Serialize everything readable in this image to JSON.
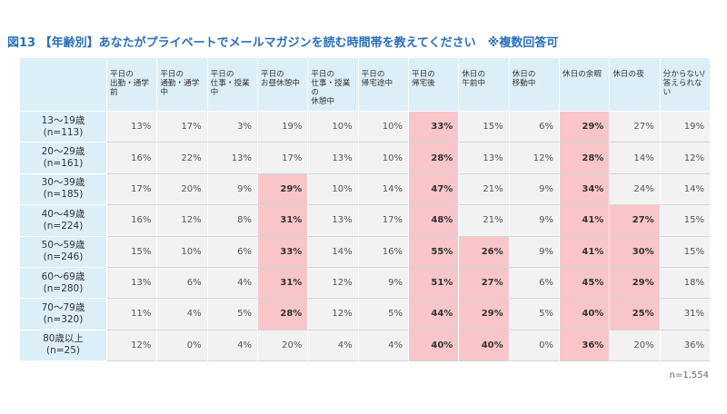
{
  "title": "図13 【年齢別】あなたがプライベートでメールマガジンを読む時間帯を教えてください　※複数回答可",
  "note": "n=1,554",
  "chart_data": {
    "type": "table",
    "columns": [
      "平日の\n出勤・通学前",
      "平日の\n通勤・通学中",
      "平日の\n仕事・授業中",
      "平日の\nお昼休憩中",
      "平日の\n仕事・授業の\n休憩中",
      "平日の\n帰宅途中",
      "平日の\n帰宅後",
      "休日の\n午前中",
      "休日の\n移動中",
      "休日の余暇",
      "休日の夜",
      "分からない/\n答えられな\nい"
    ],
    "rows": [
      {
        "label": "13～19歳\n(n=113)",
        "values": [
          "13%",
          "17%",
          "3%",
          "19%",
          "10%",
          "10%",
          "33%",
          "15%",
          "6%",
          "29%",
          "27%",
          "19%"
        ],
        "highlight": [
          6,
          9
        ]
      },
      {
        "label": "20～29歳\n(n=161)",
        "values": [
          "16%",
          "22%",
          "13%",
          "17%",
          "13%",
          "10%",
          "28%",
          "13%",
          "12%",
          "28%",
          "14%",
          "12%"
        ],
        "highlight": [
          6,
          9
        ]
      },
      {
        "label": "30～39歳\n(n=185)",
        "values": [
          "17%",
          "20%",
          "9%",
          "29%",
          "10%",
          "14%",
          "47%",
          "21%",
          "9%",
          "34%",
          "24%",
          "14%"
        ],
        "highlight": [
          3,
          6,
          9
        ]
      },
      {
        "label": "40～49歳\n(n=224)",
        "values": [
          "16%",
          "12%",
          "8%",
          "31%",
          "13%",
          "17%",
          "48%",
          "21%",
          "9%",
          "41%",
          "27%",
          "15%"
        ],
        "highlight": [
          3,
          6,
          9,
          10
        ]
      },
      {
        "label": "50～59歳\n(n=246)",
        "values": [
          "15%",
          "10%",
          "6%",
          "33%",
          "14%",
          "16%",
          "55%",
          "26%",
          "9%",
          "41%",
          "30%",
          "15%"
        ],
        "highlight": [
          3,
          6,
          7,
          9,
          10
        ]
      },
      {
        "label": "60～69歳\n(n=280)",
        "values": [
          "13%",
          "6%",
          "4%",
          "31%",
          "12%",
          "9%",
          "51%",
          "27%",
          "6%",
          "45%",
          "29%",
          "18%"
        ],
        "highlight": [
          3,
          6,
          7,
          9,
          10
        ]
      },
      {
        "label": "70～79歳\n(n=320)",
        "values": [
          "11%",
          "4%",
          "5%",
          "28%",
          "12%",
          "5%",
          "44%",
          "29%",
          "5%",
          "40%",
          "25%",
          "31%"
        ],
        "highlight": [
          3,
          6,
          7,
          9,
          10
        ]
      },
      {
        "label": "80歳以上\n(n=25)",
        "values": [
          "12%",
          "0%",
          "4%",
          "20%",
          "4%",
          "4%",
          "40%",
          "40%",
          "0%",
          "36%",
          "20%",
          "36%"
        ],
        "highlight": [
          6,
          7,
          9
        ]
      }
    ],
    "colors": {
      "header": "#dceff9",
      "cell": "#f2f2f2",
      "highlight": "#f8c5c8",
      "title": "#2a6fba"
    }
  }
}
